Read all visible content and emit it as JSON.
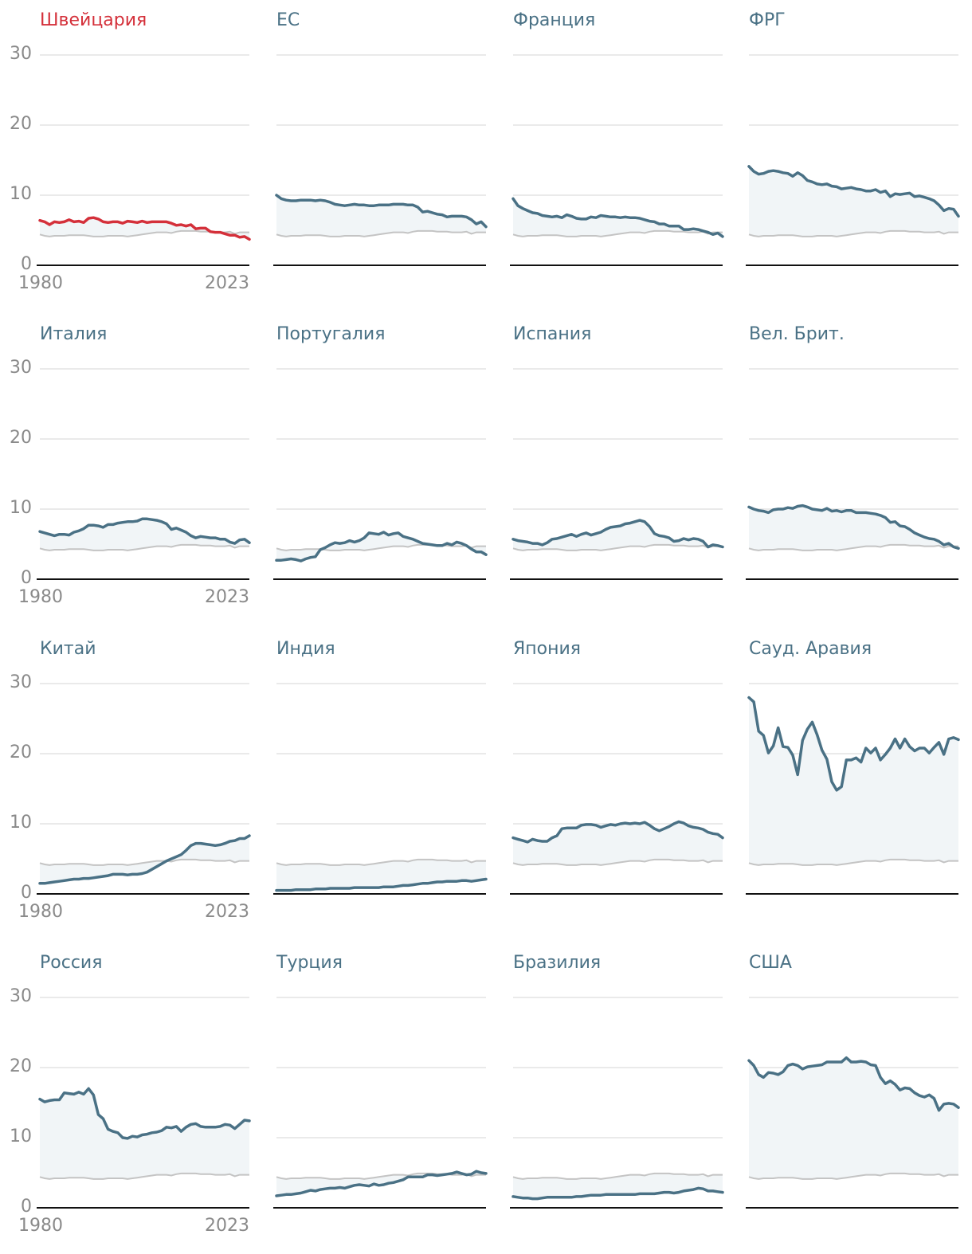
{
  "colors": {
    "highlight": "#d4303a",
    "series": "#4a7185",
    "reference": "#c4c4c4",
    "fill": "#f1f5f7",
    "grid": "#e4e4e4",
    "axis": "#111111",
    "tick_text": "#8a8a8a"
  },
  "chart_data": {
    "type": "line",
    "small_multiples": true,
    "x_range": [
      1980,
      2023
    ],
    "ylim": [
      0,
      30
    ],
    "y_ticks": [
      0,
      10,
      20,
      30
    ],
    "x_tick_labels": [
      "1980",
      "2023"
    ],
    "grid": true,
    "reference": [
      4.4,
      4.2,
      4.1,
      4.2,
      4.2,
      4.2,
      4.3,
      4.3,
      4.3,
      4.3,
      4.2,
      4.1,
      4.1,
      4.1,
      4.2,
      4.2,
      4.2,
      4.2,
      4.1,
      4.2,
      4.3,
      4.4,
      4.5,
      4.6,
      4.7,
      4.7,
      4.7,
      4.6,
      4.8,
      4.9,
      4.9,
      4.9,
      4.9,
      4.8,
      4.8,
      4.8,
      4.7,
      4.7,
      4.7,
      4.8,
      4.5,
      4.7,
      4.7,
      4.7
    ],
    "panels": [
      {
        "name": "Швейцария",
        "highlight": true,
        "values": [
          6.4,
          6.2,
          5.8,
          6.2,
          6.1,
          6.2,
          6.5,
          6.2,
          6.3,
          6.1,
          6.7,
          6.8,
          6.6,
          6.2,
          6.1,
          6.2,
          6.2,
          6.0,
          6.3,
          6.2,
          6.1,
          6.3,
          6.1,
          6.2,
          6.2,
          6.2,
          6.2,
          6.0,
          5.7,
          5.8,
          5.6,
          5.8,
          5.2,
          5.3,
          5.3,
          4.8,
          4.7,
          4.7,
          4.5,
          4.3,
          4.3,
          4.0,
          4.1,
          3.7
        ]
      },
      {
        "name": "ЕС",
        "highlight": false,
        "values": [
          10.0,
          9.5,
          9.3,
          9.2,
          9.2,
          9.3,
          9.3,
          9.3,
          9.2,
          9.3,
          9.2,
          9.0,
          8.7,
          8.6,
          8.5,
          8.6,
          8.7,
          8.6,
          8.6,
          8.5,
          8.5,
          8.6,
          8.6,
          8.6,
          8.7,
          8.7,
          8.7,
          8.6,
          8.6,
          8.3,
          7.6,
          7.7,
          7.5,
          7.3,
          7.2,
          6.9,
          7.0,
          7.0,
          7.0,
          6.9,
          6.5,
          5.9,
          6.2,
          5.5
        ]
      },
      {
        "name": "Франция",
        "highlight": false,
        "values": [
          9.5,
          8.5,
          8.1,
          7.8,
          7.5,
          7.4,
          7.1,
          7.0,
          6.9,
          7.0,
          6.8,
          7.2,
          7.0,
          6.7,
          6.6,
          6.6,
          6.9,
          6.8,
          7.1,
          7.0,
          6.9,
          6.9,
          6.8,
          6.9,
          6.8,
          6.8,
          6.7,
          6.5,
          6.3,
          6.2,
          5.9,
          5.9,
          5.6,
          5.6,
          5.6,
          5.1,
          5.1,
          5.2,
          5.1,
          4.9,
          4.7,
          4.4,
          4.6,
          4.1
        ]
      },
      {
        "name": "ФРГ",
        "highlight": false,
        "values": [
          14.1,
          13.4,
          13.0,
          13.1,
          13.4,
          13.5,
          13.4,
          13.2,
          13.1,
          12.7,
          13.2,
          12.8,
          12.1,
          11.9,
          11.6,
          11.5,
          11.6,
          11.3,
          11.2,
          10.9,
          11.0,
          11.1,
          10.9,
          10.8,
          10.6,
          10.6,
          10.8,
          10.4,
          10.6,
          9.8,
          10.2,
          10.1,
          10.2,
          10.3,
          9.8,
          9.9,
          9.7,
          9.5,
          9.2,
          8.6,
          7.8,
          8.1,
          8.0,
          7.0
        ]
      },
      {
        "name": "Италия",
        "highlight": false,
        "values": [
          6.8,
          6.6,
          6.4,
          6.2,
          6.4,
          6.4,
          6.3,
          6.7,
          6.9,
          7.2,
          7.7,
          7.7,
          7.6,
          7.4,
          7.8,
          7.8,
          8.0,
          8.1,
          8.2,
          8.2,
          8.3,
          8.6,
          8.6,
          8.5,
          8.4,
          8.2,
          7.9,
          7.1,
          7.3,
          7.0,
          6.7,
          6.2,
          5.9,
          6.1,
          6.0,
          5.9,
          5.9,
          5.7,
          5.7,
          5.3,
          5.1,
          5.6,
          5.7,
          5.2
        ]
      },
      {
        "name": "Португалия",
        "highlight": false,
        "values": [
          2.7,
          2.7,
          2.8,
          2.9,
          2.8,
          2.6,
          2.9,
          3.1,
          3.2,
          4.2,
          4.5,
          4.9,
          5.2,
          5.1,
          5.2,
          5.5,
          5.3,
          5.5,
          5.9,
          6.6,
          6.5,
          6.4,
          6.7,
          6.3,
          6.5,
          6.6,
          6.1,
          5.9,
          5.7,
          5.4,
          5.1,
          5.0,
          4.9,
          4.8,
          4.8,
          5.1,
          4.9,
          5.3,
          5.1,
          4.8,
          4.3,
          3.9,
          3.9,
          3.5
        ]
      },
      {
        "name": "Испания",
        "highlight": false,
        "values": [
          5.7,
          5.5,
          5.4,
          5.3,
          5.1,
          5.1,
          4.9,
          5.2,
          5.7,
          5.8,
          6.0,
          6.2,
          6.4,
          6.1,
          6.4,
          6.6,
          6.3,
          6.5,
          6.7,
          7.1,
          7.4,
          7.5,
          7.6,
          7.9,
          8.0,
          8.2,
          8.4,
          8.2,
          7.5,
          6.5,
          6.2,
          6.1,
          5.9,
          5.4,
          5.5,
          5.8,
          5.6,
          5.8,
          5.7,
          5.4,
          4.6,
          4.9,
          4.8,
          4.6
        ]
      },
      {
        "name": "Вел. Брит.",
        "highlight": false,
        "values": [
          10.3,
          10.0,
          9.8,
          9.7,
          9.5,
          9.9,
          10.0,
          10.0,
          10.2,
          10.1,
          10.4,
          10.5,
          10.3,
          10.0,
          9.9,
          9.8,
          10.1,
          9.7,
          9.8,
          9.6,
          9.8,
          9.8,
          9.5,
          9.5,
          9.5,
          9.4,
          9.3,
          9.1,
          8.8,
          8.1,
          8.2,
          7.6,
          7.5,
          7.1,
          6.6,
          6.3,
          6.0,
          5.8,
          5.7,
          5.4,
          4.9,
          5.1,
          4.6,
          4.4
        ]
      },
      {
        "name": "Китай",
        "highlight": false,
        "values": [
          1.5,
          1.5,
          1.6,
          1.7,
          1.8,
          1.9,
          2.0,
          2.1,
          2.1,
          2.2,
          2.2,
          2.3,
          2.4,
          2.5,
          2.6,
          2.8,
          2.8,
          2.8,
          2.7,
          2.8,
          2.8,
          2.9,
          3.1,
          3.5,
          3.9,
          4.3,
          4.7,
          5.0,
          5.3,
          5.6,
          6.2,
          6.9,
          7.2,
          7.2,
          7.1,
          7.0,
          6.9,
          7.0,
          7.2,
          7.5,
          7.6,
          7.9,
          7.9,
          8.3
        ]
      },
      {
        "name": "Индия",
        "highlight": false,
        "values": [
          0.5,
          0.5,
          0.5,
          0.5,
          0.6,
          0.6,
          0.6,
          0.6,
          0.7,
          0.7,
          0.7,
          0.8,
          0.8,
          0.8,
          0.8,
          0.8,
          0.9,
          0.9,
          0.9,
          0.9,
          0.9,
          0.9,
          1.0,
          1.0,
          1.0,
          1.1,
          1.2,
          1.2,
          1.3,
          1.4,
          1.5,
          1.5,
          1.6,
          1.7,
          1.7,
          1.8,
          1.8,
          1.8,
          1.9,
          1.9,
          1.8,
          1.9,
          2.0,
          2.1
        ]
      },
      {
        "name": "Япония",
        "highlight": false,
        "values": [
          8.0,
          7.8,
          7.6,
          7.4,
          7.8,
          7.6,
          7.5,
          7.5,
          8.0,
          8.3,
          9.3,
          9.4,
          9.4,
          9.4,
          9.8,
          9.9,
          9.9,
          9.8,
          9.5,
          9.7,
          9.9,
          9.8,
          10.0,
          10.1,
          10.0,
          10.1,
          10.0,
          10.2,
          9.8,
          9.3,
          9.0,
          9.3,
          9.6,
          10.0,
          10.3,
          10.1,
          9.7,
          9.5,
          9.4,
          9.2,
          8.8,
          8.6,
          8.5,
          8.0
        ]
      },
      {
        "name": "Сауд. Аравия",
        "highlight": false,
        "values": [
          28.0,
          27.4,
          23.2,
          22.6,
          20.1,
          21.1,
          23.7,
          21.0,
          20.9,
          19.8,
          17.0,
          21.9,
          23.5,
          24.5,
          22.7,
          20.5,
          19.2,
          16.0,
          14.8,
          15.3,
          19.1,
          19.1,
          19.4,
          18.8,
          20.8,
          20.1,
          20.8,
          19.1,
          19.9,
          20.8,
          22.1,
          20.8,
          22.1,
          21.0,
          20.4,
          20.8,
          20.8,
          20.1,
          20.9,
          21.6,
          19.9,
          22.1,
          22.3,
          22.0
        ]
      },
      {
        "name": "Россия",
        "highlight": false,
        "values": [
          15.5,
          15.1,
          15.3,
          15.4,
          15.4,
          16.4,
          16.3,
          16.2,
          16.5,
          16.2,
          17.0,
          16.1,
          13.3,
          12.7,
          11.2,
          10.9,
          10.7,
          10.0,
          9.9,
          10.2,
          10.1,
          10.4,
          10.5,
          10.7,
          10.8,
          11.0,
          11.5,
          11.4,
          11.6,
          10.9,
          11.5,
          11.9,
          12.0,
          11.6,
          11.5,
          11.5,
          11.5,
          11.6,
          11.9,
          11.8,
          11.3,
          11.9,
          12.5,
          12.4
        ]
      },
      {
        "name": "Турция",
        "highlight": false,
        "values": [
          1.7,
          1.8,
          1.9,
          1.9,
          2.0,
          2.1,
          2.3,
          2.5,
          2.4,
          2.6,
          2.7,
          2.8,
          2.8,
          2.9,
          2.8,
          3.0,
          3.2,
          3.3,
          3.2,
          3.1,
          3.4,
          3.2,
          3.3,
          3.5,
          3.6,
          3.8,
          4.0,
          4.4,
          4.4,
          4.4,
          4.4,
          4.7,
          4.7,
          4.6,
          4.7,
          4.8,
          4.9,
          5.1,
          4.9,
          4.7,
          4.8,
          5.2,
          5.0,
          4.9
        ]
      },
      {
        "name": "Бразилия",
        "highlight": false,
        "values": [
          1.6,
          1.5,
          1.4,
          1.4,
          1.3,
          1.3,
          1.4,
          1.5,
          1.5,
          1.5,
          1.5,
          1.5,
          1.5,
          1.6,
          1.6,
          1.7,
          1.8,
          1.8,
          1.8,
          1.9,
          1.9,
          1.9,
          1.9,
          1.9,
          1.9,
          1.9,
          2.0,
          2.0,
          2.0,
          2.0,
          2.1,
          2.2,
          2.2,
          2.1,
          2.2,
          2.4,
          2.5,
          2.6,
          2.8,
          2.7,
          2.4,
          2.4,
          2.3,
          2.2
        ]
      },
      {
        "name": "США",
        "highlight": false,
        "values": [
          21.0,
          20.3,
          19.0,
          18.6,
          19.3,
          19.2,
          19.0,
          19.4,
          20.3,
          20.5,
          20.3,
          19.8,
          20.1,
          20.2,
          20.3,
          20.4,
          20.8,
          20.8,
          20.8,
          20.8,
          21.4,
          20.8,
          20.8,
          20.9,
          20.8,
          20.4,
          20.3,
          18.6,
          17.7,
          18.1,
          17.6,
          16.8,
          17.1,
          17.0,
          16.4,
          16.0,
          15.8,
          16.1,
          15.6,
          13.9,
          14.8,
          14.9,
          14.8,
          14.3
        ]
      }
    ]
  }
}
